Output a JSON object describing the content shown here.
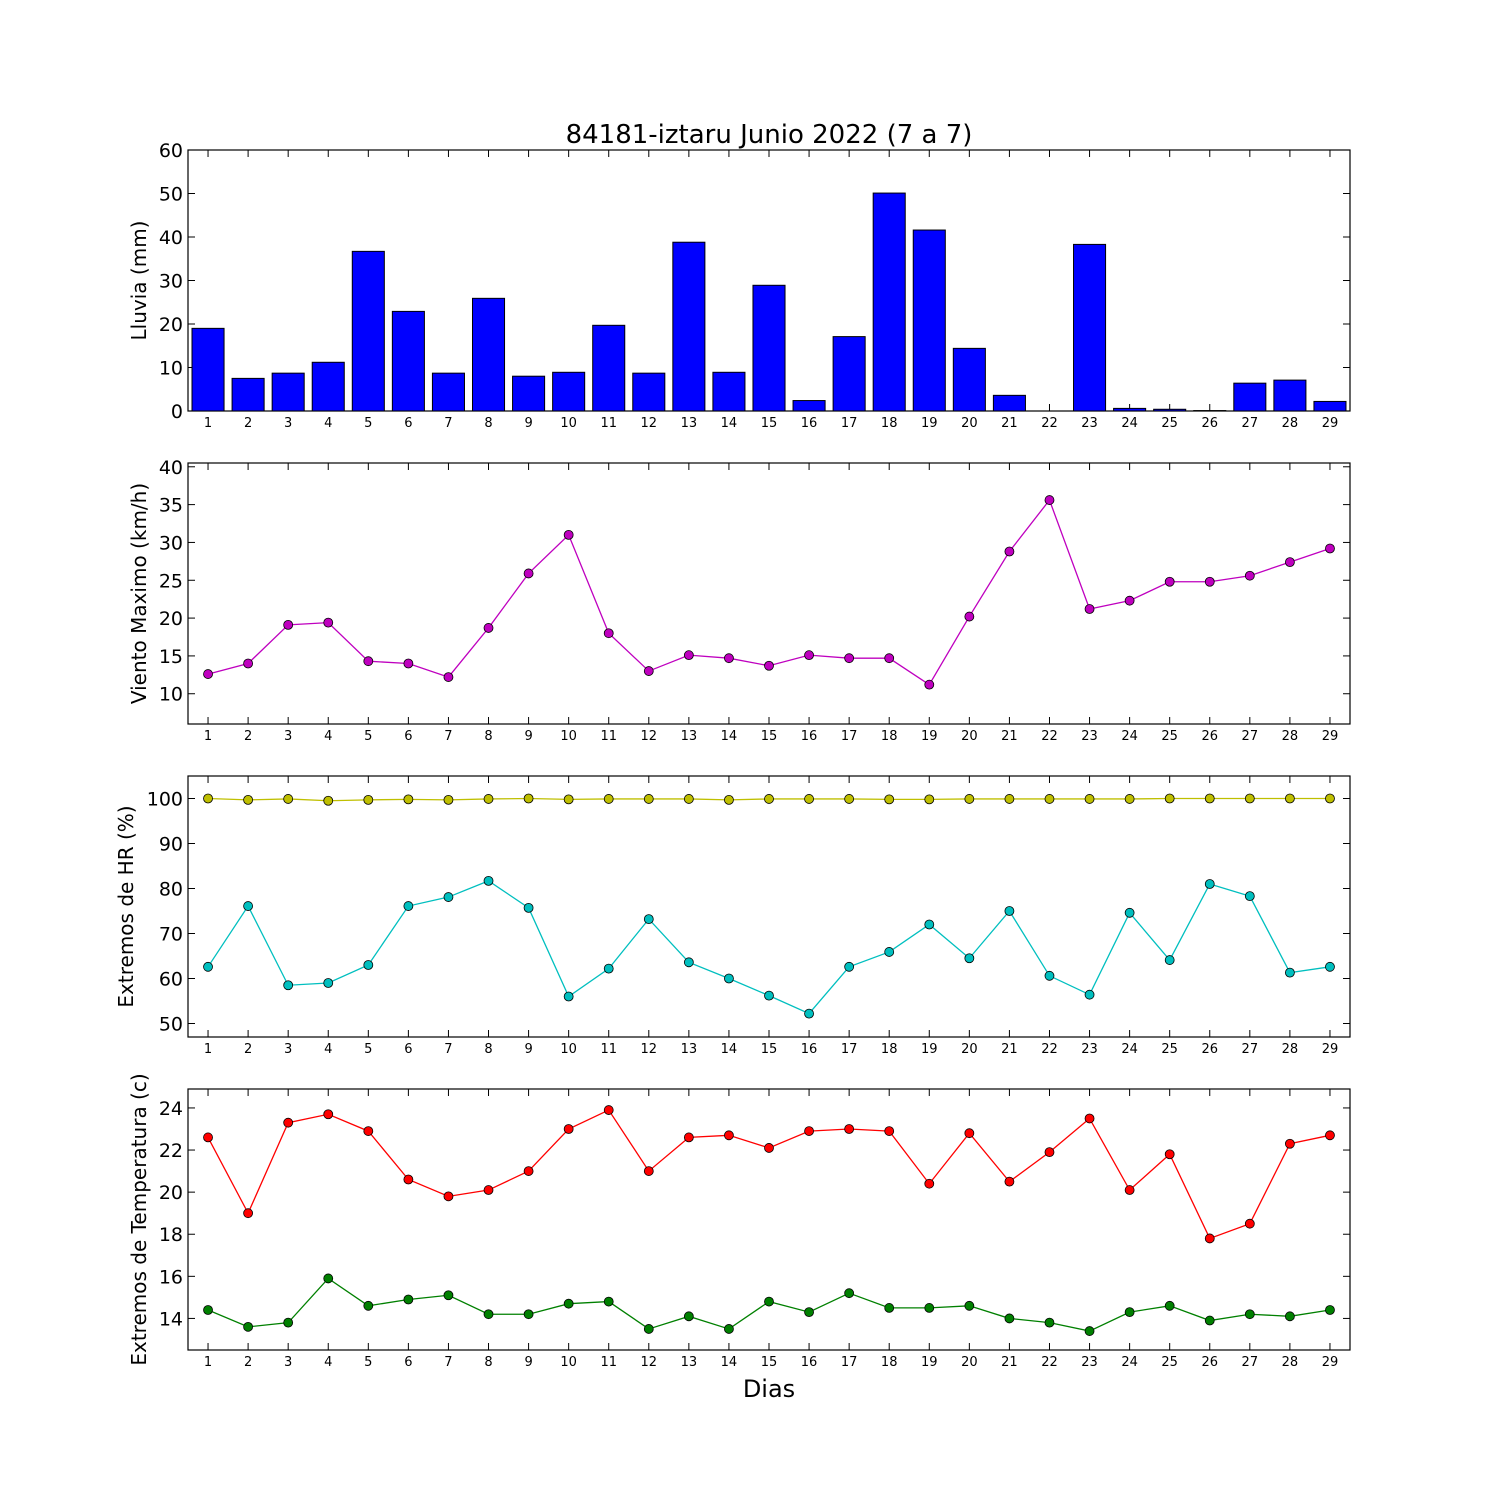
{
  "title": "84181-iztaru Junio 2022  (7 a 7)",
  "xlabel": "Dias",
  "chart_data": [
    {
      "type": "bar",
      "ylabel": "Lluvia (mm)",
      "ylim": [
        0,
        60
      ],
      "yticks": [
        0,
        10,
        20,
        30,
        40,
        50,
        60
      ],
      "categories": [
        1,
        2,
        3,
        4,
        5,
        6,
        7,
        8,
        9,
        10,
        11,
        12,
        13,
        14,
        15,
        16,
        17,
        18,
        19,
        20,
        21,
        22,
        23,
        24,
        25,
        26,
        27,
        28,
        29
      ],
      "series": [
        {
          "color": "#0000ff",
          "values": [
            19.0,
            7.5,
            8.7,
            11.2,
            36.7,
            22.9,
            8.7,
            25.9,
            8.0,
            8.9,
            19.7,
            8.7,
            38.8,
            8.9,
            28.9,
            2.4,
            17.1,
            50.1,
            41.6,
            14.4,
            3.6,
            0.0,
            38.3,
            0.6,
            0.4,
            0.1,
            6.4,
            7.1,
            2.2
          ]
        }
      ]
    },
    {
      "type": "line",
      "ylabel": "Viento Maximo (km/h)",
      "ylim": [
        6,
        40.5
      ],
      "yticks": [
        10,
        15,
        20,
        25,
        30,
        35,
        40
      ],
      "categories": [
        1,
        2,
        3,
        4,
        5,
        6,
        7,
        8,
        9,
        10,
        11,
        12,
        13,
        14,
        15,
        16,
        17,
        18,
        19,
        20,
        21,
        22,
        23,
        24,
        25,
        26,
        27,
        28,
        29
      ],
      "series": [
        {
          "color": "#bf00bf",
          "values": [
            12.6,
            14.0,
            19.1,
            19.4,
            14.3,
            14.0,
            12.2,
            18.7,
            25.9,
            31.0,
            18.0,
            13.0,
            15.1,
            14.7,
            13.7,
            15.1,
            14.7,
            14.7,
            11.2,
            20.2,
            28.8,
            35.6,
            21.2,
            22.3,
            24.8,
            24.8,
            25.6,
            27.4,
            29.2
          ]
        }
      ]
    },
    {
      "type": "line",
      "ylabel": "Extremos de HR (%)",
      "ylim": [
        47,
        105
      ],
      "yticks": [
        50,
        60,
        70,
        80,
        90,
        100
      ],
      "categories": [
        1,
        2,
        3,
        4,
        5,
        6,
        7,
        8,
        9,
        10,
        11,
        12,
        13,
        14,
        15,
        16,
        17,
        18,
        19,
        20,
        21,
        22,
        23,
        24,
        25,
        26,
        27,
        28,
        29
      ],
      "series": [
        {
          "color": "#bfbf00",
          "values": [
            100.0,
            99.7,
            99.9,
            99.5,
            99.7,
            99.8,
            99.7,
            99.9,
            100.0,
            99.8,
            99.9,
            99.9,
            99.9,
            99.7,
            99.9,
            99.9,
            99.9,
            99.8,
            99.8,
            99.9,
            99.9,
            99.9,
            99.9,
            99.9,
            100.0,
            100.0,
            100.0,
            100.0,
            100.0
          ]
        },
        {
          "color": "#00bfbf",
          "values": [
            62.6,
            76.1,
            58.5,
            59.0,
            63.0,
            76.1,
            78.1,
            81.7,
            75.7,
            56.0,
            62.2,
            73.2,
            63.6,
            60.0,
            56.2,
            52.2,
            62.6,
            65.9,
            72.0,
            64.5,
            75.0,
            60.6,
            56.4,
            74.6,
            64.1,
            81.0,
            78.3,
            61.3,
            62.6
          ]
        }
      ]
    },
    {
      "type": "line",
      "ylabel": "Extremos de Temperatura (c)",
      "ylim": [
        12.5,
        24.9
      ],
      "yticks": [
        14,
        16,
        18,
        20,
        22,
        24
      ],
      "categories": [
        1,
        2,
        3,
        4,
        5,
        6,
        7,
        8,
        9,
        10,
        11,
        12,
        13,
        14,
        15,
        16,
        17,
        18,
        19,
        20,
        21,
        22,
        23,
        24,
        25,
        26,
        27,
        28,
        29
      ],
      "series": [
        {
          "color": "#ff0000",
          "values": [
            22.6,
            19.0,
            23.3,
            23.7,
            22.9,
            20.6,
            19.8,
            20.1,
            21.0,
            23.0,
            23.9,
            21.0,
            22.6,
            22.7,
            22.1,
            22.9,
            23.0,
            22.9,
            20.4,
            22.8,
            20.5,
            21.9,
            23.5,
            20.1,
            21.8,
            17.8,
            18.5,
            22.3,
            22.7
          ]
        },
        {
          "color": "#008000",
          "values": [
            14.4,
            13.6,
            13.8,
            15.9,
            14.6,
            14.9,
            15.1,
            14.2,
            14.2,
            14.7,
            14.8,
            13.5,
            14.1,
            13.5,
            14.8,
            14.3,
            15.2,
            14.5,
            14.5,
            14.6,
            14.0,
            13.8,
            13.4,
            14.3,
            14.6,
            13.9,
            14.2,
            14.1,
            14.4
          ]
        }
      ]
    }
  ]
}
